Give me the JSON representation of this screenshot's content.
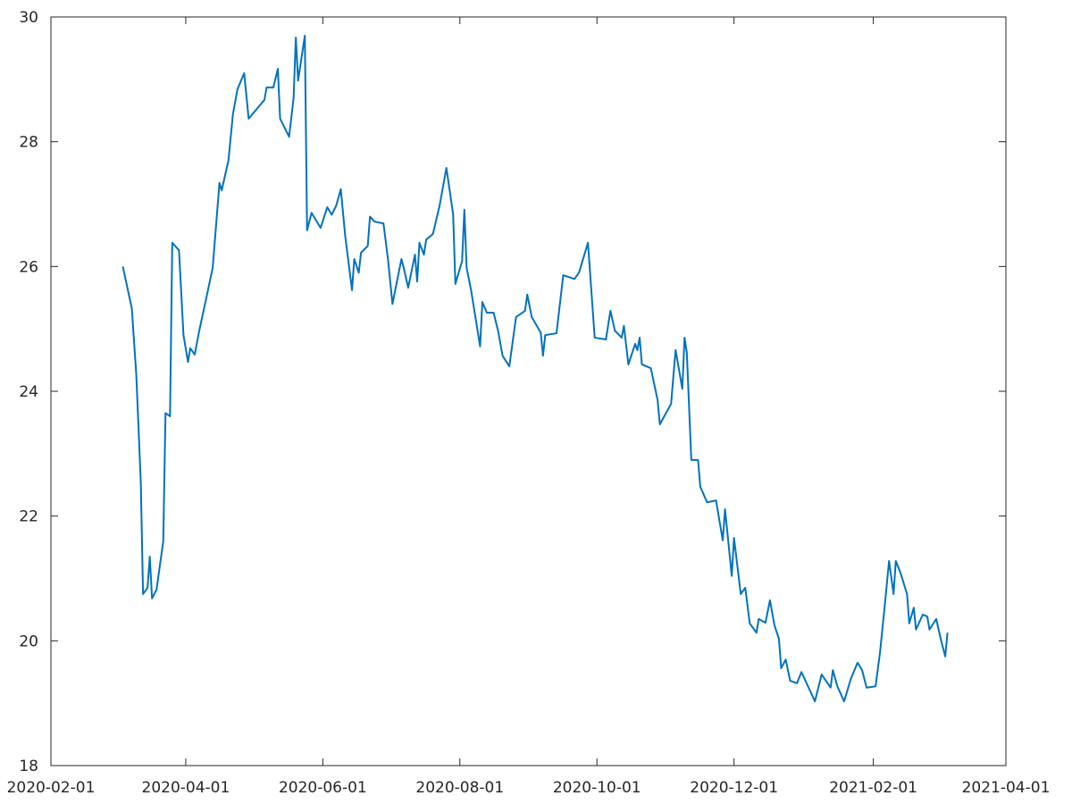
{
  "chart_data": {
    "type": "line",
    "x": [
      "2020-03-04",
      "2020-03-08",
      "2020-03-10",
      "2020-03-12",
      "2020-03-13",
      "2020-03-15",
      "2020-03-16",
      "2020-03-17",
      "2020-03-19",
      "2020-03-22",
      "2020-03-23",
      "2020-03-25",
      "2020-03-26",
      "2020-03-29",
      "2020-03-31",
      "2020-04-02",
      "2020-04-03",
      "2020-04-05",
      "2020-04-07",
      "2020-04-10",
      "2020-04-13",
      "2020-04-16",
      "2020-04-17",
      "2020-04-20",
      "2020-04-22",
      "2020-04-24",
      "2020-04-27",
      "2020-04-29",
      "2020-05-06",
      "2020-05-07",
      "2020-05-10",
      "2020-05-12",
      "2020-05-13",
      "2020-05-17",
      "2020-05-19",
      "2020-05-20",
      "2020-05-21",
      "2020-05-24",
      "2020-05-25",
      "2020-05-27",
      "2020-05-31",
      "2020-06-03",
      "2020-06-05",
      "2020-06-07",
      "2020-06-09",
      "2020-06-11",
      "2020-06-14",
      "2020-06-15",
      "2020-06-17",
      "2020-06-18",
      "2020-06-21",
      "2020-06-22",
      "2020-06-24",
      "2020-06-28",
      "2020-06-30",
      "2020-07-02",
      "2020-07-06",
      "2020-07-07",
      "2020-07-09",
      "2020-07-12",
      "2020-07-13",
      "2020-07-14",
      "2020-07-16",
      "2020-07-17",
      "2020-07-20",
      "2020-07-23",
      "2020-07-26",
      "2020-07-29",
      "2020-07-30",
      "2020-08-02",
      "2020-08-03",
      "2020-08-04",
      "2020-08-06",
      "2020-08-10",
      "2020-08-11",
      "2020-08-13",
      "2020-08-16",
      "2020-08-18",
      "2020-08-20",
      "2020-08-23",
      "2020-08-26",
      "2020-08-30",
      "2020-08-31",
      "2020-09-02",
      "2020-09-06",
      "2020-09-07",
      "2020-09-08",
      "2020-09-13",
      "2020-09-16",
      "2020-09-21",
      "2020-09-23",
      "2020-09-27",
      "2020-09-30",
      "2020-10-05",
      "2020-10-07",
      "2020-10-09",
      "2020-10-12",
      "2020-10-13",
      "2020-10-15",
      "2020-10-18",
      "2020-10-19",
      "2020-10-20",
      "2020-10-21",
      "2020-10-25",
      "2020-10-28",
      "2020-10-29",
      "2020-11-03",
      "2020-11-05",
      "2020-11-08",
      "2020-11-09",
      "2020-11-10",
      "2020-11-12",
      "2020-11-15",
      "2020-11-16",
      "2020-11-19",
      "2020-11-23",
      "2020-11-26",
      "2020-11-27",
      "2020-11-30",
      "2020-12-01",
      "2020-12-04",
      "2020-12-06",
      "2020-12-08",
      "2020-12-11",
      "2020-12-12",
      "2020-12-15",
      "2020-12-17",
      "2020-12-19",
      "2020-12-21",
      "2020-12-22",
      "2020-12-24",
      "2020-12-26",
      "2020-12-29",
      "2020-12-31",
      "2021-01-06",
      "2021-01-09",
      "2021-01-13",
      "2021-01-14",
      "2021-01-16",
      "2021-01-19",
      "2021-01-22",
      "2021-01-25",
      "2021-01-27",
      "2021-01-29",
      "2021-02-02",
      "2021-02-04",
      "2021-02-06",
      "2021-02-08",
      "2021-02-10",
      "2021-02-11",
      "2021-02-13",
      "2021-02-16",
      "2021-02-17",
      "2021-02-19",
      "2021-02-20",
      "2021-02-23",
      "2021-02-25",
      "2021-02-26",
      "2021-03-01",
      "2021-03-03",
      "2021-03-05",
      "2021-03-06"
    ],
    "values": [
      26.0,
      25.33,
      24.26,
      22.54,
      20.75,
      20.85,
      21.35,
      20.68,
      20.82,
      21.6,
      23.65,
      23.6,
      26.38,
      26.26,
      24.9,
      24.47,
      24.69,
      24.59,
      24.97,
      25.47,
      25.98,
      27.34,
      27.22,
      27.7,
      28.44,
      28.84,
      29.1,
      28.37,
      28.67,
      28.87,
      28.87,
      29.17,
      28.37,
      28.08,
      28.7,
      29.67,
      28.98,
      29.7,
      26.58,
      26.86,
      26.62,
      26.95,
      26.83,
      26.98,
      27.24,
      26.48,
      25.62,
      26.12,
      25.9,
      26.22,
      26.33,
      26.8,
      26.72,
      26.69,
      26.12,
      25.4,
      26.12,
      25.98,
      25.66,
      26.19,
      25.76,
      26.38,
      26.19,
      26.43,
      26.52,
      26.98,
      27.58,
      26.84,
      25.72,
      26.09,
      26.91,
      25.98,
      25.62,
      24.72,
      25.43,
      25.26,
      25.26,
      24.97,
      24.57,
      24.4,
      25.19,
      25.29,
      25.55,
      25.19,
      24.94,
      24.57,
      24.9,
      24.93,
      25.86,
      25.8,
      25.9,
      26.38,
      24.86,
      24.83,
      25.29,
      24.97,
      24.86,
      25.05,
      24.43,
      24.76,
      24.66,
      24.86,
      24.43,
      24.37,
      23.86,
      23.47,
      23.8,
      24.66,
      24.04,
      24.86,
      24.62,
      22.9,
      22.9,
      22.47,
      22.22,
      22.25,
      21.61,
      22.11,
      21.04,
      21.65,
      20.75,
      20.85,
      20.28,
      20.13,
      20.35,
      20.29,
      20.65,
      20.25,
      20.03,
      19.56,
      19.7,
      19.36,
      19.32,
      19.5,
      19.03,
      19.46,
      19.25,
      19.53,
      19.27,
      19.03,
      19.39,
      19.65,
      19.53,
      19.25,
      19.27,
      19.82,
      20.53,
      21.28,
      20.75,
      21.28,
      21.1,
      20.75,
      20.28,
      20.53,
      20.18,
      20.42,
      20.39,
      20.18,
      20.35,
      20.03,
      19.75,
      20.13
    ],
    "color": "#0072bd",
    "xlim": [
      "2020-02-01",
      "2021-04-01"
    ],
    "xticks": [
      "2020-02-01",
      "2020-04-01",
      "2020-06-01",
      "2020-08-01",
      "2020-10-01",
      "2020-12-01",
      "2021-02-01",
      "2021-04-01"
    ],
    "ylim": [
      18,
      30
    ],
    "yticks": [
      18,
      20,
      22,
      24,
      26,
      28,
      30
    ],
    "grid": false
  }
}
